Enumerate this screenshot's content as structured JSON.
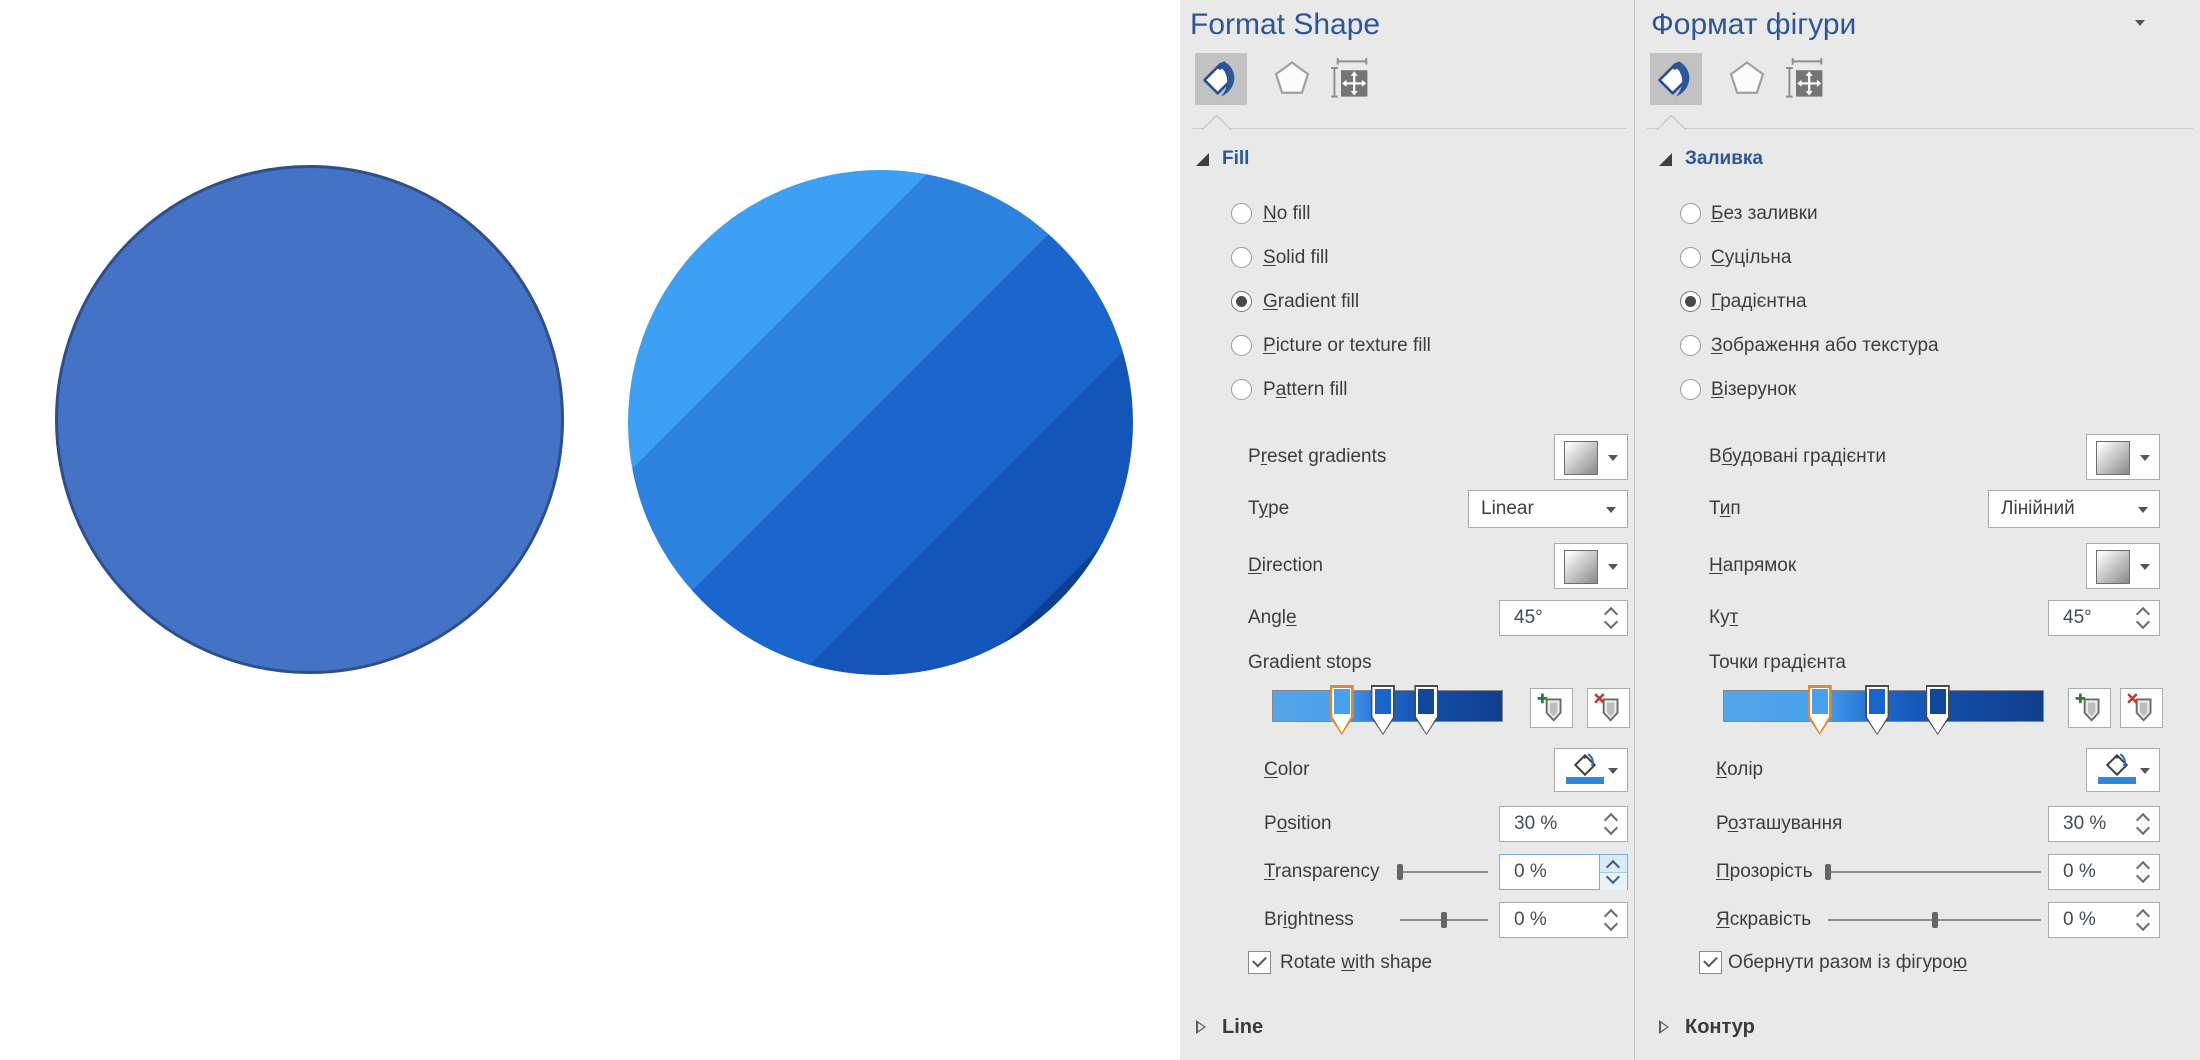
{
  "canvas": {
    "solid_circle": {
      "fill": "#4472C4",
      "border": "#2F4E8C"
    },
    "gradient_circle": {
      "bands": [
        {
          "color": "#3DA0F2",
          "to_pct": 30
        },
        {
          "color": "#2D82E0",
          "to_pct": 48
        },
        {
          "color": "#1A66CD",
          "to_pct": 67
        },
        {
          "color": "#1355B8",
          "to_pct": 84
        },
        {
          "color": "#0D4090",
          "to_pct": 100
        }
      ]
    }
  },
  "gradient": {
    "bar_css_stops": [
      "#54A5E9 0%",
      "#47A1EC 30%",
      "#1D66CB 50%",
      "#134FA8 68%",
      "#113E8C 100%"
    ],
    "stops": [
      {
        "position_pct": 30,
        "color": "#47A0EC",
        "selected": true
      },
      {
        "position_pct": 48,
        "color": "#1966CB",
        "selected": false
      },
      {
        "position_pct": 67,
        "color": "#11479D",
        "selected": false
      }
    ]
  },
  "icons": {
    "tool1": "fill-and-line-paint-bucket",
    "tool2": "effects-pentagon",
    "tool3": "size-and-properties",
    "pane_menu": "pane-options-chevron-down",
    "add_stop": "add-gradient-stop",
    "remove_stop": "remove-gradient-stop"
  },
  "panels": {
    "en": {
      "title": "Format Shape",
      "section_fill": "Fill",
      "section_bottom": "Line",
      "radios": [
        {
          "label_html": "<u>N</u>o fill",
          "selected": false
        },
        {
          "label_html": "<u>S</u>olid fill",
          "selected": false
        },
        {
          "label_html": "<u>G</u>radient fill",
          "selected": true
        },
        {
          "label_html": "<u>P</u>icture or texture fill",
          "selected": false
        },
        {
          "label_html": "P<u>a</u>ttern fill",
          "selected": false
        }
      ],
      "preset_label_html": "P<u>r</u>eset gradients",
      "type_label_html": "T<u>y</u>pe",
      "type_value": "Linear",
      "direction_label_html": "<u>D</u>irection",
      "angle_label_html": "Angl<u>e</u>",
      "angle_value": "45°",
      "stops_label": "Gradient stops",
      "color_label_html": "<u>C</u>olor",
      "position_label_html": "P<u>o</u>sition",
      "position_value": "30 %",
      "transparency_label_html": "<u>T</u>ransparency",
      "transparency_value": "0 %",
      "brightness_label_html": "Br<u>i</u>ghtness",
      "brightness_value": "0 %",
      "rotate_label_html": "Rotate <u>w</u>ith shape",
      "rotate_checked": true,
      "transparency_focused": true,
      "show_pane_menu": false
    },
    "ua": {
      "title": "Формат фігури",
      "section_fill": "Заливка",
      "section_bottom": "Контур",
      "radios": [
        {
          "label_html": "<u>Б</u>ез заливки",
          "selected": false
        },
        {
          "label_html": "<u>С</u>уцільна",
          "selected": false
        },
        {
          "label_html": "<u>Г</u>радієнтна",
          "selected": true
        },
        {
          "label_html": "<u>З</u>ображення або текстура",
          "selected": false
        },
        {
          "label_html": "<u>В</u>ізерунок",
          "selected": false
        }
      ],
      "preset_label_html": "В<u>б</u>удовані градієнти",
      "type_label_html": "Т<u>и</u>п",
      "type_value": "Лінійний",
      "direction_label_html": "<u>Н</u>апрямок",
      "angle_label_html": "Ку<u>т</u>",
      "angle_value": "45°",
      "stops_label": "Точки градієнта",
      "color_label_html": "<u>К</u>олір",
      "position_label_html": "Р<u>о</u>зташування",
      "position_value": "30 %",
      "transparency_label_html": "<u>П</u>розорість",
      "transparency_value": "0 %",
      "brightness_label_html": "<u>Я</u>скравість",
      "brightness_value": "0 %",
      "rotate_label_html": "Обернути разом із фігуро<u>ю</u>",
      "rotate_checked": true,
      "transparency_focused": false,
      "show_pane_menu": true
    }
  }
}
